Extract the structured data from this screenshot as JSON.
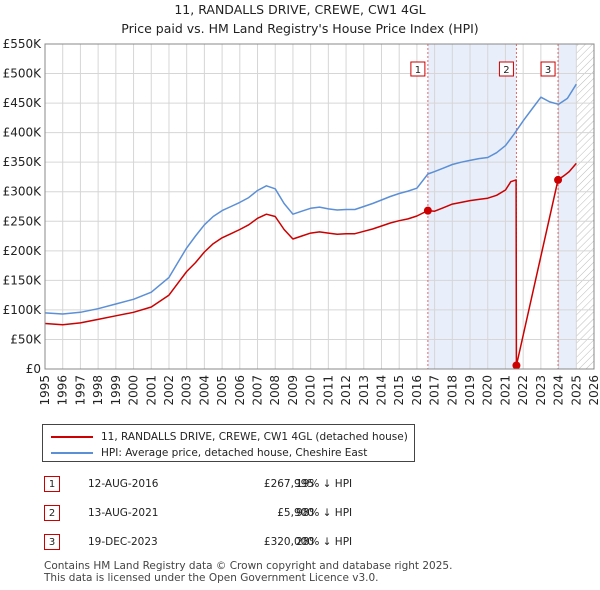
{
  "chart_data": {
    "type": "line",
    "title": "11, RANDALLS DRIVE, CREWE, CW1 4GL",
    "subtitle": "Price paid vs. HM Land Registry's House Price Index (HPI)",
    "xlim": [
      1995,
      2026
    ],
    "ylim": [
      0,
      550000
    ],
    "x_ticks": [
      1995,
      1996,
      1997,
      1998,
      1999,
      2000,
      2001,
      2002,
      2003,
      2004,
      2005,
      2006,
      2007,
      2008,
      2009,
      2010,
      2011,
      2012,
      2013,
      2014,
      2015,
      2016,
      2017,
      2018,
      2019,
      2020,
      2021,
      2022,
      2023,
      2024,
      2025,
      2026
    ],
    "y_ticks": [
      {
        "value": 0,
        "label": "£0"
      },
      {
        "value": 50000,
        "label": "£50K"
      },
      {
        "value": 100000,
        "label": "£100K"
      },
      {
        "value": 150000,
        "label": "£150K"
      },
      {
        "value": 200000,
        "label": "£200K"
      },
      {
        "value": 250000,
        "label": "£250K"
      },
      {
        "value": 300000,
        "label": "£300K"
      },
      {
        "value": 350000,
        "label": "£350K"
      },
      {
        "value": 400000,
        "label": "£400K"
      },
      {
        "value": 450000,
        "label": "£450K"
      },
      {
        "value": 500000,
        "label": "£500K"
      },
      {
        "value": 550000,
        "label": "£550K"
      }
    ],
    "colors": {
      "property": "#cc0000",
      "hpi": "#5b8fd6",
      "shade": "#e8eefa",
      "marker_line": "#e06666",
      "grid": "#d6d6d6"
    },
    "shaded_ranges": [
      [
        2016.62,
        2021.62
      ],
      [
        2023.97,
        2025.0
      ]
    ],
    "hatched_range": [
      2025.0,
      2026.0
    ],
    "series": [
      {
        "name": "11, RANDALLS DRIVE, CREWE, CW1 4GL (detached house)",
        "color": "#cc0000",
        "x": [
          1995.0,
          1996.0,
          1997.0,
          1998.0,
          1999.0,
          2000.0,
          2001.0,
          2002.0,
          2002.5,
          2003.0,
          2003.5,
          2004.0,
          2004.5,
          2005.0,
          2005.5,
          2006.0,
          2006.5,
          2007.0,
          2007.5,
          2008.0,
          2008.5,
          2009.0,
          2009.5,
          2010.0,
          2010.5,
          2011.0,
          2011.5,
          2012.0,
          2012.5,
          2013.0,
          2013.5,
          2014.0,
          2014.5,
          2015.0,
          2015.5,
          2016.0,
          2016.62,
          2017.0,
          2017.5,
          2018.0,
          2018.5,
          2019.0,
          2019.5,
          2020.0,
          2020.5,
          2021.0,
          2021.3,
          2021.6,
          2021.62,
          2023.97,
          2024.3,
          2024.6,
          2025.0
        ],
        "values": [
          77000,
          75000,
          78000,
          84000,
          90000,
          96000,
          105000,
          125000,
          145000,
          165000,
          180000,
          198000,
          212000,
          222000,
          229000,
          236000,
          244000,
          255000,
          262000,
          258000,
          236000,
          220000,
          225000,
          230000,
          232000,
          230000,
          228000,
          229000,
          229000,
          233000,
          237000,
          242000,
          247000,
          251000,
          254000,
          259000,
          267995,
          267000,
          273000,
          279000,
          282000,
          285000,
          287000,
          289000,
          294000,
          303000,
          317000,
          320000,
          5900,
          320000,
          327000,
          334000,
          348000
        ]
      },
      {
        "name": "HPI: Average price, detached house, Cheshire East",
        "color": "#5b8fd6",
        "x": [
          1995.0,
          1996.0,
          1997.0,
          1998.0,
          1999.0,
          2000.0,
          2001.0,
          2002.0,
          2002.5,
          2003.0,
          2003.5,
          2004.0,
          2004.5,
          2005.0,
          2005.5,
          2006.0,
          2006.5,
          2007.0,
          2007.5,
          2008.0,
          2008.5,
          2009.0,
          2009.5,
          2010.0,
          2010.5,
          2011.0,
          2011.5,
          2012.0,
          2012.5,
          2013.0,
          2013.5,
          2014.0,
          2014.5,
          2015.0,
          2015.5,
          2016.0,
          2016.62,
          2017.0,
          2017.5,
          2018.0,
          2018.5,
          2019.0,
          2019.5,
          2020.0,
          2020.5,
          2021.0,
          2021.5,
          2022.0,
          2022.5,
          2023.0,
          2023.5,
          2024.0,
          2024.5,
          2025.0
        ],
        "values": [
          95000,
          93000,
          96000,
          102000,
          110000,
          118000,
          130000,
          155000,
          180000,
          205000,
          225000,
          244000,
          258000,
          268000,
          275000,
          282000,
          290000,
          302000,
          310000,
          305000,
          280000,
          262000,
          267000,
          272000,
          274000,
          271000,
          269000,
          270000,
          270000,
          275000,
          280000,
          286000,
          292000,
          297000,
          301000,
          306000,
          330000,
          334000,
          340000,
          346000,
          350000,
          353000,
          356000,
          358000,
          366000,
          378000,
          398000,
          420000,
          440000,
          460000,
          452000,
          448000,
          458000,
          482000
        ]
      }
    ],
    "sales": [
      {
        "label": "1",
        "x": 2016.62,
        "value": 267995
      },
      {
        "label": "2",
        "x": 2021.62,
        "value": 5900
      },
      {
        "label": "3",
        "x": 2023.97,
        "value": 320000
      }
    ]
  },
  "legend": {
    "property_label": "11, RANDALLS DRIVE, CREWE, CW1 4GL (detached house)",
    "hpi_label": "HPI: Average price, detached house, Cheshire East"
  },
  "transactions": [
    {
      "num": "1",
      "date": "12-AUG-2016",
      "price": "£267,995",
      "hpi": "19% ↓ HPI"
    },
    {
      "num": "2",
      "date": "13-AUG-2021",
      "price": "£5,900",
      "hpi": "98% ↓ HPI"
    },
    {
      "num": "3",
      "date": "19-DEC-2023",
      "price": "£320,000",
      "hpi": "28% ↓ HPI"
    }
  ],
  "footer": {
    "line1": "Contains HM Land Registry data © Crown copyright and database right 2025.",
    "line2": "This data is licensed under the Open Government Licence v3.0."
  }
}
